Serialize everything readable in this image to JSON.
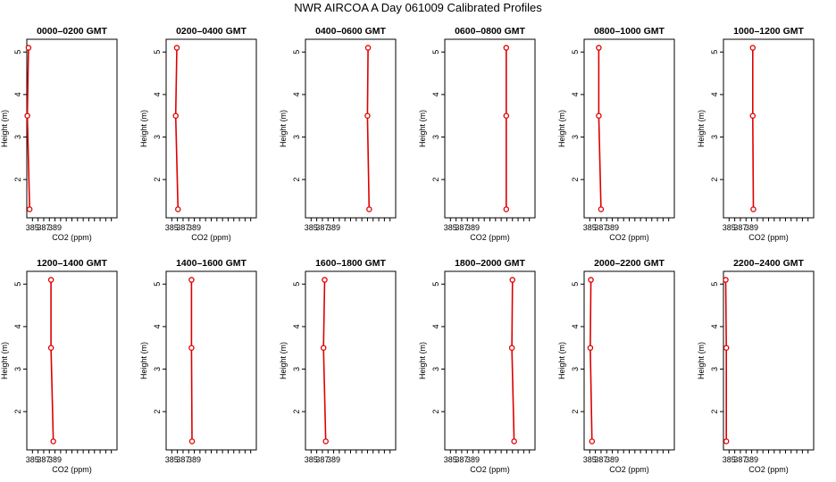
{
  "page": {
    "title": "NWR AIRCOA A  Day 061009  Calibrated Profiles"
  },
  "colors": {
    "series": "#dd0000",
    "axis": "#000000",
    "background": "#ffffff"
  },
  "chart_data": [
    {
      "type": "line",
      "title": "0000–0200 GMT",
      "xlabel": "CO2 (ppm)",
      "ylabel": "Height (m)",
      "xlim": [
        384,
        400
      ],
      "ylim": [
        1.1,
        5.3
      ],
      "xticks": [
        385,
        386,
        387,
        388,
        389,
        390,
        391,
        392,
        393,
        394,
        395,
        396,
        397,
        398,
        399
      ],
      "xtick_labels": [
        "385",
        "",
        "387",
        "",
        "389",
        "",
        "",
        "",
        "",
        "",
        "",
        "",
        "",
        "",
        ""
      ],
      "yticks": [
        2,
        3,
        4,
        5
      ],
      "ytick_labels": [
        "2",
        "3",
        "4",
        "5"
      ],
      "series": [
        {
          "x": [
            384.3,
            384.1,
            384.5
          ],
          "y": [
            5.1,
            3.5,
            1.3
          ]
        }
      ]
    },
    {
      "type": "line",
      "title": "0200–0400 GMT",
      "xlabel": "CO2 (ppm)",
      "ylabel": "Height (m)",
      "xlim": [
        384,
        400
      ],
      "ylim": [
        1.1,
        5.3
      ],
      "xticks": [
        385,
        386,
        387,
        388,
        389,
        390,
        391,
        392,
        393,
        394,
        395,
        396,
        397,
        398,
        399
      ],
      "xtick_labels": [
        "385",
        "",
        "387",
        "",
        "389",
        "",
        "",
        "",
        "",
        "",
        "",
        "",
        "",
        "",
        ""
      ],
      "yticks": [
        2,
        3,
        4,
        5
      ],
      "ytick_labels": [
        "2",
        "3",
        "4",
        "5"
      ],
      "series": [
        {
          "x": [
            385.9,
            385.7,
            386.1
          ],
          "y": [
            5.1,
            3.5,
            1.3
          ]
        }
      ]
    },
    {
      "type": "line",
      "title": "0400–0600 GMT",
      "xlabel": "",
      "ylabel": "Height (m)",
      "xlim": [
        384,
        400
      ],
      "ylim": [
        1.1,
        5.3
      ],
      "xticks": [
        385,
        386,
        387,
        388,
        389,
        390,
        391,
        392,
        393,
        394,
        395,
        396,
        397,
        398,
        399
      ],
      "xtick_labels": [
        "385",
        "",
        "387",
        "",
        "389",
        "",
        "",
        "",
        "",
        "",
        "",
        "",
        "",
        "",
        ""
      ],
      "yticks": [
        2,
        3,
        4,
        5
      ],
      "ytick_labels": [
        "2",
        "3",
        "4",
        "5"
      ],
      "series": [
        {
          "x": [
            395.1,
            395.0,
            395.3
          ],
          "y": [
            5.1,
            3.5,
            1.3
          ]
        }
      ]
    },
    {
      "type": "line",
      "title": "0600–0800 GMT",
      "xlabel": "CO2 (ppm)",
      "ylabel": "Height (m)",
      "xlim": [
        384,
        400
      ],
      "ylim": [
        1.1,
        5.3
      ],
      "xticks": [
        385,
        386,
        387,
        388,
        389,
        390,
        391,
        392,
        393,
        394,
        395,
        396,
        397,
        398,
        399
      ],
      "xtick_labels": [
        "385",
        "",
        "387",
        "",
        "389",
        "",
        "",
        "",
        "",
        "",
        "",
        "",
        "",
        "",
        ""
      ],
      "yticks": [
        2,
        3,
        4,
        5
      ],
      "ytick_labels": [
        "2",
        "3",
        "4",
        "5"
      ],
      "series": [
        {
          "x": [
            394.9,
            394.9,
            394.9
          ],
          "y": [
            5.1,
            3.5,
            1.3
          ]
        }
      ]
    },
    {
      "type": "line",
      "title": "0800–1000 GMT",
      "xlabel": "CO2 (ppm)",
      "ylabel": "Height (m)",
      "xlim": [
        384,
        400
      ],
      "ylim": [
        1.1,
        5.3
      ],
      "xticks": [
        385,
        386,
        387,
        388,
        389,
        390,
        391,
        392,
        393,
        394,
        395,
        396,
        397,
        398,
        399
      ],
      "xtick_labels": [
        "385",
        "",
        "387",
        "",
        "389",
        "",
        "",
        "",
        "",
        "",
        "",
        "",
        "",
        "",
        ""
      ],
      "yticks": [
        2,
        3,
        4,
        5
      ],
      "ytick_labels": [
        "2",
        "3",
        "4",
        "5"
      ],
      "series": [
        {
          "x": [
            386.6,
            386.6,
            387.0
          ],
          "y": [
            5.1,
            3.5,
            1.3
          ]
        }
      ]
    },
    {
      "type": "line",
      "title": "1000–1200 GMT",
      "xlabel": "CO2 (ppm)",
      "ylabel": "Height (m)",
      "xlim": [
        384,
        400
      ],
      "ylim": [
        1.1,
        5.3
      ],
      "xticks": [
        385,
        386,
        387,
        388,
        389,
        390,
        391,
        392,
        393,
        394,
        395,
        396,
        397,
        398,
        399
      ],
      "xtick_labels": [
        "385",
        "",
        "387",
        "",
        "389",
        "",
        "",
        "",
        "",
        "",
        "",
        "",
        "",
        "",
        ""
      ],
      "yticks": [
        2,
        3,
        4,
        5
      ],
      "ytick_labels": [
        "2",
        "3",
        "4",
        "5"
      ],
      "series": [
        {
          "x": [
            389.2,
            389.2,
            389.3
          ],
          "y": [
            5.1,
            3.5,
            1.3
          ]
        }
      ]
    },
    {
      "type": "line",
      "title": "1200–1400 GMT",
      "xlabel": "CO2 (ppm)",
      "ylabel": "Height (m)",
      "xlim": [
        384,
        400
      ],
      "ylim": [
        1.1,
        5.3
      ],
      "xticks": [
        385,
        386,
        387,
        388,
        389,
        390,
        391,
        392,
        393,
        394,
        395,
        396,
        397,
        398,
        399
      ],
      "xtick_labels": [
        "385",
        "",
        "387",
        "",
        "389",
        "",
        "",
        "",
        "",
        "",
        "",
        "",
        "",
        "",
        ""
      ],
      "yticks": [
        2,
        3,
        4,
        5
      ],
      "ytick_labels": [
        "2",
        "3",
        "4",
        "5"
      ],
      "series": [
        {
          "x": [
            388.3,
            388.3,
            388.7
          ],
          "y": [
            5.1,
            3.5,
            1.3
          ]
        }
      ]
    },
    {
      "type": "line",
      "title": "1400–1600 GMT",
      "xlabel": "",
      "ylabel": "Height (m)",
      "xlim": [
        384,
        400
      ],
      "ylim": [
        1.1,
        5.3
      ],
      "xticks": [
        385,
        386,
        387,
        388,
        389,
        390,
        391,
        392,
        393,
        394,
        395,
        396,
        397,
        398,
        399
      ],
      "xtick_labels": [
        "385",
        "",
        "387",
        "",
        "389",
        "",
        "",
        "",
        "",
        "",
        "",
        "",
        "",
        "",
        ""
      ],
      "yticks": [
        2,
        3,
        4,
        5
      ],
      "ytick_labels": [
        "2",
        "3",
        "4",
        "5"
      ],
      "series": [
        {
          "x": [
            388.5,
            388.5,
            388.6
          ],
          "y": [
            5.1,
            3.5,
            1.3
          ]
        }
      ]
    },
    {
      "type": "line",
      "title": "1600–1800 GMT",
      "xlabel": "",
      "ylabel": "Height (m)",
      "xlim": [
        384,
        400
      ],
      "ylim": [
        1.1,
        5.3
      ],
      "xticks": [
        385,
        386,
        387,
        388,
        389,
        390,
        391,
        392,
        393,
        394,
        395,
        396,
        397,
        398,
        399
      ],
      "xtick_labels": [
        "385",
        "",
        "387",
        "",
        "389",
        "",
        "",
        "",
        "",
        "",
        "",
        "",
        "",
        "",
        ""
      ],
      "yticks": [
        2,
        3,
        4,
        5
      ],
      "ytick_labels": [
        "2",
        "3",
        "4",
        "5"
      ],
      "series": [
        {
          "x": [
            387.4,
            387.2,
            387.6
          ],
          "y": [
            5.1,
            3.5,
            1.3
          ]
        }
      ]
    },
    {
      "type": "line",
      "title": "1800–2000 GMT",
      "xlabel": "CO2 (ppm)",
      "ylabel": "Height (m)",
      "xlim": [
        384,
        400
      ],
      "ylim": [
        1.1,
        5.3
      ],
      "xticks": [
        385,
        386,
        387,
        388,
        389,
        390,
        391,
        392,
        393,
        394,
        395,
        396,
        397,
        398,
        399
      ],
      "xtick_labels": [
        "385",
        "",
        "387",
        "",
        "389",
        "",
        "",
        "",
        "",
        "",
        "",
        "",
        "",
        "",
        ""
      ],
      "yticks": [
        2,
        3,
        4,
        5
      ],
      "ytick_labels": [
        "2",
        "3",
        "4",
        "5"
      ],
      "series": [
        {
          "x": [
            396.0,
            395.9,
            396.3
          ],
          "y": [
            5.1,
            3.5,
            1.3
          ]
        }
      ]
    },
    {
      "type": "line",
      "title": "2000–2200 GMT",
      "xlabel": "CO2 (ppm)",
      "ylabel": "Height (m)",
      "xlim": [
        384,
        400
      ],
      "ylim": [
        1.1,
        5.3
      ],
      "xticks": [
        385,
        386,
        387,
        388,
        389,
        390,
        391,
        392,
        393,
        394,
        395,
        396,
        397,
        398,
        399
      ],
      "xtick_labels": [
        "385",
        "",
        "387",
        "",
        "389",
        "",
        "",
        "",
        "",
        "",
        "",
        "",
        "",
        "",
        ""
      ],
      "yticks": [
        2,
        3,
        4,
        5
      ],
      "ytick_labels": [
        "2",
        "3",
        "4",
        "5"
      ],
      "series": [
        {
          "x": [
            385.2,
            385.1,
            385.4
          ],
          "y": [
            5.1,
            3.5,
            1.3
          ]
        }
      ]
    },
    {
      "type": "line",
      "title": "2200–2400 GMT",
      "xlabel": "CO2 (ppm)",
      "ylabel": "Height (m)",
      "xlim": [
        384,
        400
      ],
      "ylim": [
        1.1,
        5.3
      ],
      "xticks": [
        385,
        386,
        387,
        388,
        389,
        390,
        391,
        392,
        393,
        394,
        395,
        396,
        397,
        398,
        399
      ],
      "xtick_labels": [
        "385",
        "",
        "387",
        "",
        "389",
        "",
        "",
        "",
        "",
        "",
        "",
        "",
        "",
        "",
        ""
      ],
      "yticks": [
        2,
        3,
        4,
        5
      ],
      "ytick_labels": [
        "2",
        "3",
        "4",
        "5"
      ],
      "series": [
        {
          "x": [
            384.4,
            384.5,
            384.5
          ],
          "y": [
            5.1,
            3.5,
            1.3
          ]
        }
      ]
    }
  ]
}
